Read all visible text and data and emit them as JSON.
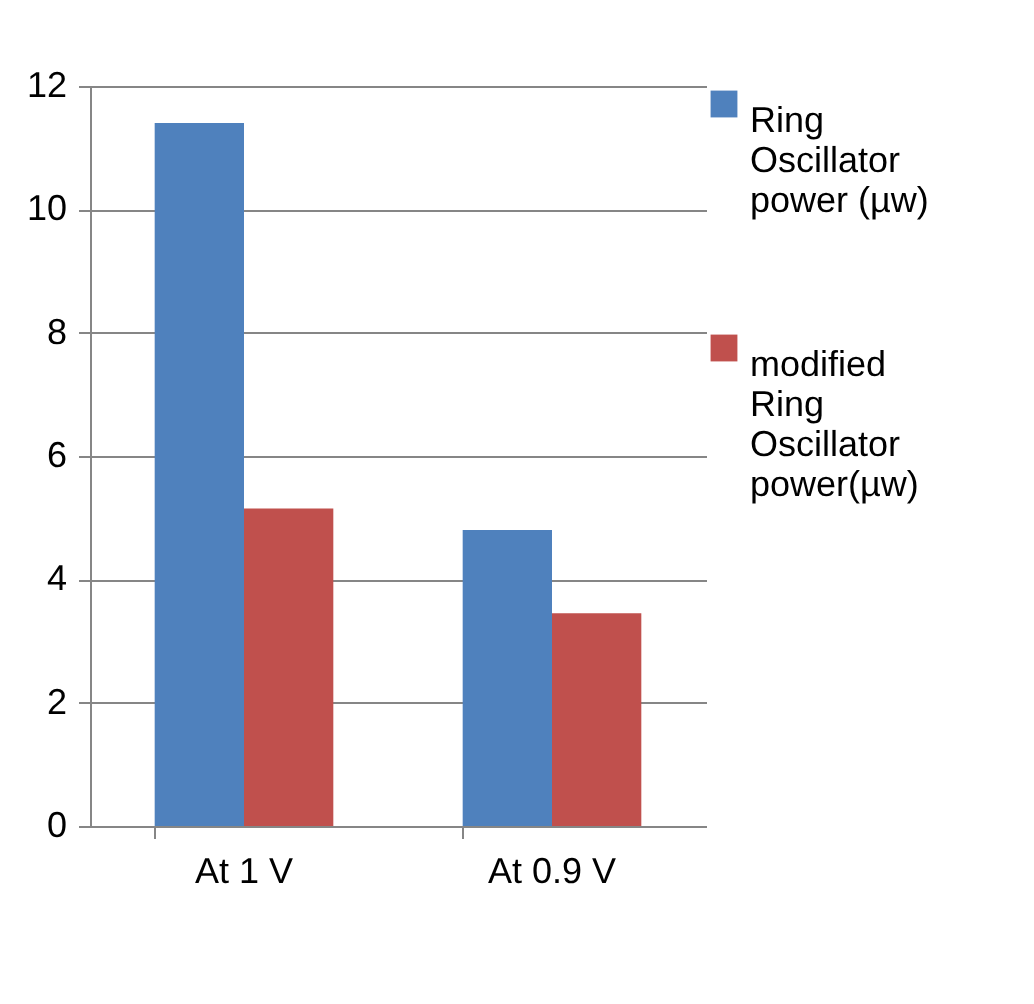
{
  "chart_data": {
    "type": "bar",
    "categories": [
      "At 1 V",
      "At  0.9 V"
    ],
    "series": [
      {
        "name": "Ring Oscillator power (µw)",
        "color": "#4f81bd",
        "values": [
          11.4,
          4.8
        ]
      },
      {
        "name": "modified Ring Oscillator power(µw)",
        "color": "#c0504d",
        "values": [
          5.15,
          3.45
        ]
      }
    ],
    "ylim": [
      0,
      12
    ],
    "yticks": [
      0,
      2,
      4,
      6,
      8,
      10,
      12
    ],
    "grid": "y",
    "legend": "right"
  }
}
